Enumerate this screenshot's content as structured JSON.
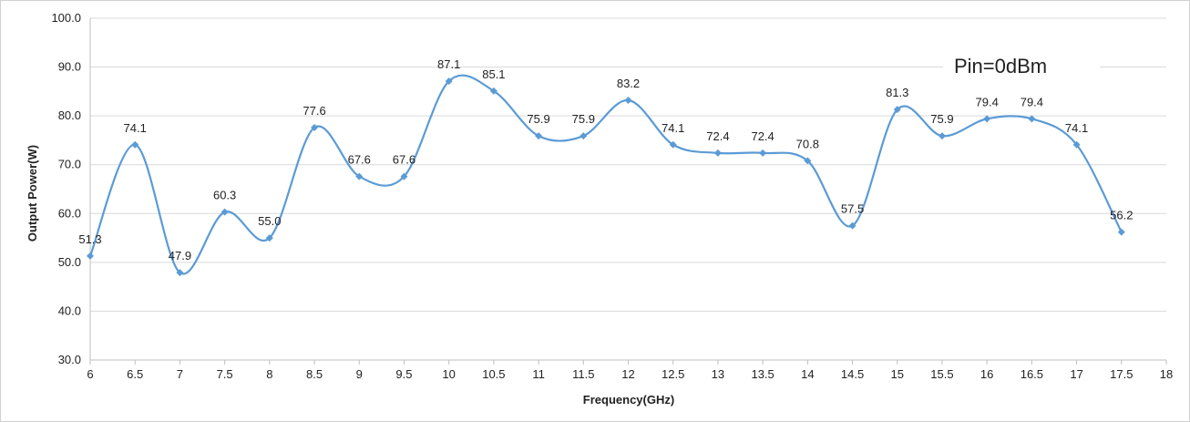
{
  "chart_data": {
    "type": "line",
    "xlabel": "Frequency(GHz)",
    "ylabel": "Output Power(W)",
    "annotation": "Pin=0dBm",
    "xlim": [
      6,
      18
    ],
    "ylim": [
      30,
      100
    ],
    "x_ticks": [
      "6",
      "6.5",
      "7",
      "7.5",
      "8",
      "8.5",
      "9",
      "9.5",
      "10",
      "10.5",
      "11",
      "11.5",
      "12",
      "12.5",
      "13",
      "13.5",
      "14",
      "14.5",
      "15",
      "15.5",
      "16",
      "16.5",
      "17",
      "17.5",
      "18"
    ],
    "y_ticks": [
      "30.0",
      "40.0",
      "50.0",
      "60.0",
      "70.0",
      "80.0",
      "90.0",
      "100.0"
    ],
    "grid": "horizontal",
    "legend": "none",
    "smooth": true,
    "series": [
      {
        "x": [
          6,
          6.5,
          7,
          7.5,
          8,
          8.5,
          9,
          9.5,
          10,
          10.5,
          11,
          11.5,
          12,
          12.5,
          13,
          13.5,
          14,
          14.5,
          15,
          15.5,
          16,
          16.5,
          17,
          17.5
        ],
        "values": [
          51.3,
          74.1,
          47.9,
          60.3,
          55.0,
          77.6,
          67.6,
          67.6,
          87.1,
          85.1,
          75.9,
          75.9,
          83.2,
          74.1,
          72.4,
          72.4,
          70.8,
          57.5,
          81.3,
          75.9,
          79.4,
          79.4,
          74.1,
          56.2
        ],
        "labels": [
          "51.3",
          "74.1",
          "47.9",
          "60.3",
          "55.0",
          "77.6",
          "67.6",
          "67.6",
          "87.1",
          "85.1",
          "75.9",
          "75.9",
          "83.2",
          "74.1",
          "72.4",
          "72.4",
          "70.8",
          "57.5",
          "81.3",
          "75.9",
          "79.4",
          "79.4",
          "74.1",
          "56.2"
        ],
        "color": "#5b9bd5"
      }
    ]
  }
}
